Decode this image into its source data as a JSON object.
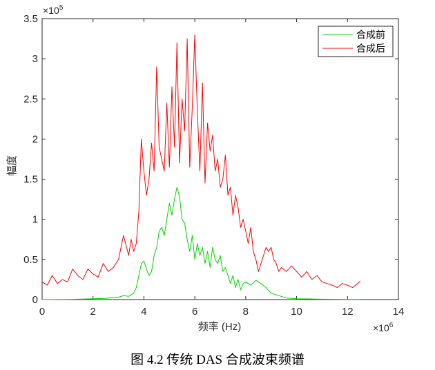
{
  "caption": "图 4.2  传统 DAS 合成波束频谱",
  "chart_data": {
    "type": "line",
    "xlabel": "频率 (Hz)",
    "ylabel": "幅度",
    "xlim": [
      0,
      14
    ],
    "ylim": [
      0,
      3.5
    ],
    "x_multiplier": {
      "base": "×10",
      "exp": "6"
    },
    "y_multiplier": {
      "base": "×10",
      "exp": "5"
    },
    "x_ticks": [
      0,
      2,
      4,
      6,
      8,
      10,
      12,
      14
    ],
    "y_ticks": [
      0,
      0.5,
      1,
      1.5,
      2,
      2.5,
      3,
      3.5
    ],
    "y_tick_labels": [
      "0",
      "0.5",
      "1",
      "1.5",
      "2",
      "2.5",
      "3",
      "3.5"
    ],
    "grid": false,
    "legend_position": "top-right",
    "series": [
      {
        "name": "合成前",
        "color": "#00d400",
        "x": [
          0,
          1.0,
          2.0,
          2.5,
          3.0,
          3.2,
          3.4,
          3.6,
          3.7,
          3.8,
          3.9,
          4.0,
          4.1,
          4.2,
          4.3,
          4.4,
          4.5,
          4.6,
          4.7,
          4.8,
          4.9,
          5.0,
          5.1,
          5.2,
          5.3,
          5.4,
          5.5,
          5.6,
          5.7,
          5.8,
          5.9,
          6.0,
          6.1,
          6.2,
          6.3,
          6.4,
          6.5,
          6.6,
          6.7,
          6.8,
          6.9,
          7.0,
          7.1,
          7.2,
          7.3,
          7.4,
          7.5,
          7.6,
          7.7,
          7.8,
          7.9,
          8.0,
          8.2,
          8.4,
          8.6,
          8.8,
          9.0,
          9.3,
          9.6,
          10.0,
          11.0,
          12.0,
          12.5
        ],
        "values": [
          0.0,
          0.003,
          0.01,
          0.015,
          0.03,
          0.05,
          0.04,
          0.08,
          0.15,
          0.3,
          0.45,
          0.48,
          0.38,
          0.3,
          0.35,
          0.55,
          0.65,
          0.85,
          0.9,
          0.8,
          1.0,
          1.2,
          1.05,
          1.25,
          1.4,
          1.28,
          1.0,
          0.95,
          0.75,
          0.6,
          0.8,
          0.5,
          0.7,
          0.55,
          0.65,
          0.45,
          0.6,
          0.4,
          0.65,
          0.5,
          0.45,
          0.55,
          0.35,
          0.4,
          0.3,
          0.2,
          0.3,
          0.15,
          0.25,
          0.12,
          0.2,
          0.22,
          0.18,
          0.24,
          0.2,
          0.15,
          0.08,
          0.05,
          0.02,
          0.01,
          0.005,
          0.003,
          0.002
        ]
      },
      {
        "name": "合成后",
        "color": "#ff0000",
        "x": [
          0,
          0.2,
          0.4,
          0.6,
          0.8,
          1.0,
          1.2,
          1.4,
          1.6,
          1.8,
          2.0,
          2.2,
          2.4,
          2.6,
          2.8,
          3.0,
          3.2,
          3.4,
          3.5,
          3.6,
          3.7,
          3.8,
          3.9,
          4.0,
          4.1,
          4.2,
          4.3,
          4.4,
          4.5,
          4.6,
          4.7,
          4.8,
          4.9,
          5.0,
          5.1,
          5.2,
          5.3,
          5.4,
          5.5,
          5.6,
          5.7,
          5.8,
          5.9,
          6.0,
          6.1,
          6.2,
          6.3,
          6.4,
          6.5,
          6.6,
          6.7,
          6.8,
          6.9,
          7.0,
          7.1,
          7.2,
          7.3,
          7.4,
          7.5,
          7.6,
          7.7,
          7.8,
          7.9,
          8.0,
          8.1,
          8.2,
          8.3,
          8.4,
          8.5,
          8.6,
          8.7,
          8.8,
          8.9,
          9.0,
          9.1,
          9.2,
          9.3,
          9.4,
          9.6,
          9.8,
          10.0,
          10.2,
          10.4,
          10.6,
          10.8,
          11.0,
          11.2,
          11.4,
          11.6,
          11.8,
          12.0,
          12.2,
          12.4,
          12.5
        ],
        "values": [
          0.22,
          0.18,
          0.3,
          0.2,
          0.25,
          0.22,
          0.38,
          0.3,
          0.25,
          0.38,
          0.32,
          0.28,
          0.45,
          0.35,
          0.4,
          0.5,
          0.8,
          0.55,
          0.75,
          0.6,
          0.7,
          1.1,
          2.0,
          1.6,
          1.3,
          1.5,
          1.95,
          1.6,
          2.9,
          1.9,
          1.75,
          1.6,
          2.45,
          1.65,
          2.65,
          1.9,
          3.2,
          1.7,
          2.5,
          2.1,
          3.25,
          1.65,
          2.4,
          3.3,
          2.35,
          1.6,
          2.7,
          1.45,
          2.2,
          1.85,
          2.05,
          1.6,
          1.75,
          1.4,
          1.5,
          1.8,
          1.3,
          1.4,
          1.05,
          1.3,
          1.15,
          0.9,
          1.0,
          0.85,
          0.7,
          0.9,
          0.6,
          0.5,
          0.35,
          0.45,
          0.55,
          0.65,
          0.6,
          0.65,
          0.5,
          0.45,
          0.35,
          0.4,
          0.35,
          0.42,
          0.35,
          0.28,
          0.35,
          0.25,
          0.3,
          0.22,
          0.2,
          0.18,
          0.15,
          0.2,
          0.18,
          0.15,
          0.2,
          0.23
        ]
      }
    ]
  }
}
